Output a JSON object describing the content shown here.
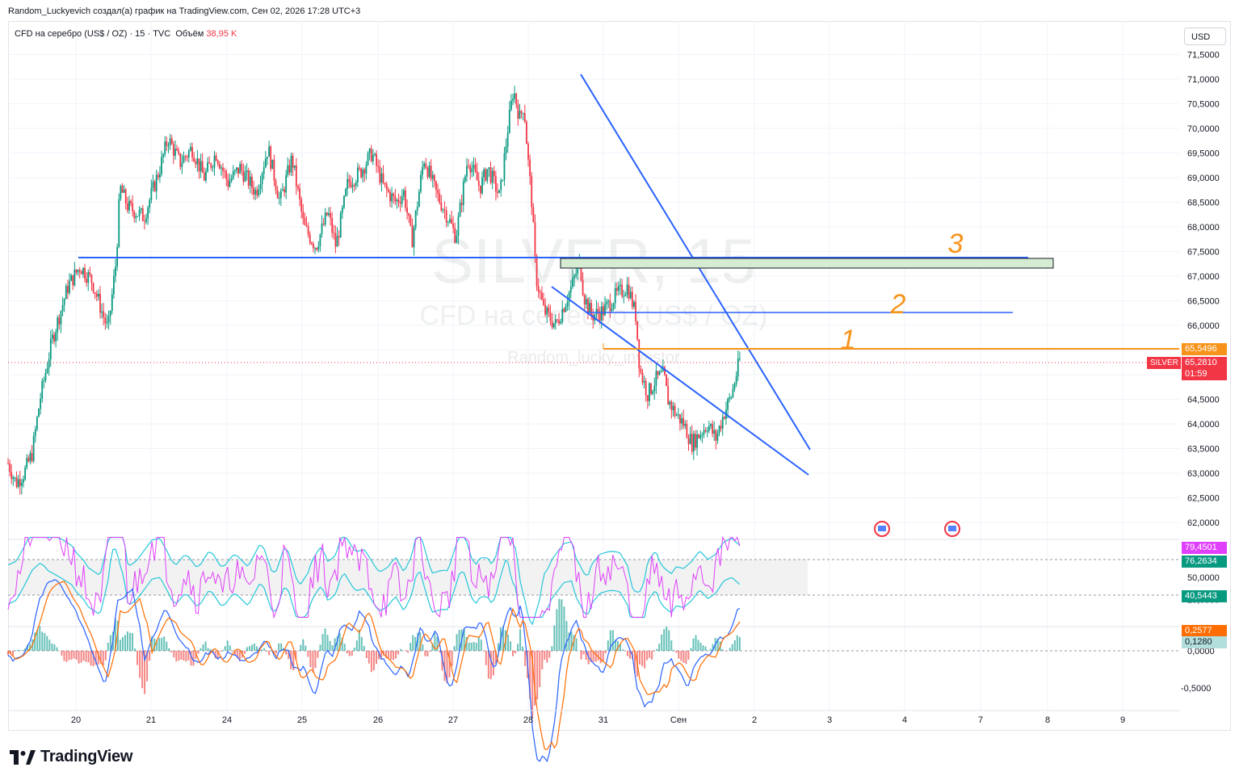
{
  "caption": "Random_Luckyevich создал(а) график на TradingView.com, Сен 02, 2026 17:28 UTC+3",
  "legend": {
    "symbol": "CFD на серебро (US$ / OZ) · 15 · TVC",
    "volume_label": "Объём",
    "volume_value": "38,95 K"
  },
  "currency": "USD",
  "watermark": {
    "symbol": "SILVER, 15",
    "description": "CFD на серебро (US$ / OZ)",
    "author": "Random_lucky_investor"
  },
  "brand": "TradingView",
  "colors": {
    "up": "#089981",
    "down": "#f23645",
    "trend_line": "#2962ff",
    "level_line": "#f7931a",
    "zone_fill": "#d5ecd3",
    "rsi_line": "#e040fb",
    "rsi_band": "#26c6da",
    "macd": "#2962ff",
    "signal": "#ff6d00"
  },
  "chart_data": {
    "type": "candlestick",
    "instrument": "SILVER",
    "timeframe": "15",
    "x_tick_labels": [
      "20",
      "21",
      "24",
      "25",
      "26",
      "27",
      "28",
      "31",
      "Сен",
      "2",
      "3",
      "4",
      "7",
      "8",
      "9"
    ],
    "y_axis_labels": [
      "71,5000",
      "71,0000",
      "70,5000",
      "70,0000",
      "69,5000",
      "69,0000",
      "68,5000",
      "68,0000",
      "67,5000",
      "67,0000",
      "66,5000",
      "66,0000",
      "64,5000",
      "64,0000",
      "63,5000",
      "63,0000",
      "62,5000",
      "62,0000"
    ],
    "price_path": [
      [
        0,
        63.2
      ],
      [
        0.01,
        62.8
      ],
      [
        0.02,
        63.0
      ],
      [
        0.03,
        63.4
      ],
      [
        0.04,
        64.5
      ],
      [
        0.055,
        65.7
      ],
      [
        0.075,
        66.8
      ],
      [
        0.09,
        67.2
      ],
      [
        0.105,
        66.9
      ],
      [
        0.115,
        66.4
      ],
      [
        0.125,
        65.9
      ],
      [
        0.135,
        67.3
      ],
      [
        0.14,
        68.8
      ],
      [
        0.15,
        68.4
      ],
      [
        0.17,
        68.2
      ],
      [
        0.19,
        69.2
      ],
      [
        0.2,
        69.8
      ],
      [
        0.215,
        69.3
      ],
      [
        0.23,
        69.6
      ],
      [
        0.245,
        69.0
      ],
      [
        0.26,
        69.5
      ],
      [
        0.275,
        68.9
      ],
      [
        0.29,
        69.2
      ],
      [
        0.31,
        68.7
      ],
      [
        0.325,
        69.6
      ],
      [
        0.34,
        68.5
      ],
      [
        0.355,
        69.4
      ],
      [
        0.37,
        68.0
      ],
      [
        0.385,
        67.6
      ],
      [
        0.4,
        68.3
      ],
      [
        0.41,
        67.6
      ],
      [
        0.425,
        68.9
      ],
      [
        0.44,
        69.1
      ],
      [
        0.455,
        69.5
      ],
      [
        0.47,
        68.8
      ],
      [
        0.485,
        68.5
      ],
      [
        0.495,
        68.7
      ],
      [
        0.505,
        67.7
      ],
      [
        0.52,
        69.4
      ],
      [
        0.535,
        68.7
      ],
      [
        0.55,
        68.2
      ],
      [
        0.56,
        67.8
      ],
      [
        0.575,
        69.4
      ],
      [
        0.59,
        68.8
      ],
      [
        0.6,
        69.2
      ],
      [
        0.615,
        68.6
      ],
      [
        0.625,
        70.0
      ],
      [
        0.632,
        70.8
      ],
      [
        0.64,
        70.2
      ],
      [
        0.645,
        70.5
      ],
      [
        0.65,
        69.4
      ],
      [
        0.655,
        68.5
      ],
      [
        0.66,
        67.0
      ],
      [
        0.67,
        66.3
      ],
      [
        0.685,
        66.0
      ],
      [
        0.695,
        66.4
      ],
      [
        0.705,
        66.8
      ],
      [
        0.715,
        67.3
      ],
      [
        0.72,
        66.6
      ],
      [
        0.73,
        66.2
      ],
      [
        0.745,
        66.3
      ],
      [
        0.76,
        66.6
      ],
      [
        0.775,
        66.8
      ],
      [
        0.78,
        66.5
      ],
      [
        0.785,
        66.2
      ],
      [
        0.79,
        65.1
      ],
      [
        0.8,
        64.6
      ],
      [
        0.81,
        64.9
      ],
      [
        0.82,
        65.0
      ],
      [
        0.825,
        64.5
      ],
      [
        0.835,
        64.2
      ],
      [
        0.845,
        64.0
      ],
      [
        0.855,
        63.6
      ],
      [
        0.865,
        63.8
      ],
      [
        0.875,
        64.0
      ],
      [
        0.885,
        63.7
      ],
      [
        0.895,
        64.2
      ],
      [
        0.905,
        64.6
      ],
      [
        0.915,
        65.3
      ]
    ],
    "last_price": "65,2810",
    "countdown": "01:59",
    "level_marker_price": "65,5496",
    "annotations": [
      "1",
      "2",
      "3"
    ],
    "rsi": {
      "axis_labels": [
        "50,0000",
        "25,0000"
      ],
      "values": [
        "79,4501",
        "76,2634",
        "40,5443"
      ]
    },
    "macd": {
      "axis_labels": [
        "0,0000",
        "-0,5000"
      ],
      "values": [
        "0,2577",
        "0,1280"
      ]
    }
  }
}
